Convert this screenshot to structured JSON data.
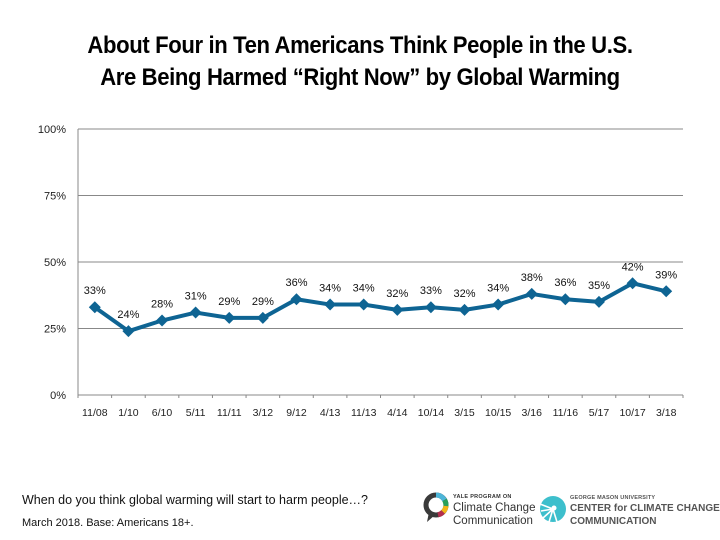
{
  "chart_data": {
    "type": "line",
    "title": "About Four in Ten Americans Think People in the U.S. Are Being Harmed “Right Now” by Global Warming",
    "title_lines": [
      "About Four in Ten Americans Think People in the U.S.",
      "Are Being Harmed “Right Now” by Global Warming"
    ],
    "xlabel": "",
    "ylabel": "",
    "categories": [
      "11/08",
      "1/10",
      "6/10",
      "5/11",
      "11/11",
      "3/12",
      "9/12",
      "4/13",
      "11/13",
      "4/14",
      "10/14",
      "3/15",
      "10/15",
      "3/16",
      "11/16",
      "5/17",
      "10/17",
      "3/18"
    ],
    "series": [
      {
        "name": "Right now",
        "values": [
          33,
          24,
          28,
          31,
          29,
          29,
          36,
          34,
          34,
          32,
          33,
          32,
          34,
          38,
          36,
          35,
          42,
          39
        ],
        "data_labels": [
          "33%",
          "24%",
          "28%",
          "31%",
          "29%",
          "29%",
          "36%",
          "34%",
          "34%",
          "32%",
          "33%",
          "32%",
          "34%",
          "38%",
          "36%",
          "35%",
          "42%",
          "39%"
        ],
        "color": "#0e6493",
        "marker": "diamond"
      }
    ],
    "ylim": [
      0,
      100
    ],
    "yticks": [
      0,
      25,
      50,
      75,
      100
    ],
    "ytick_labels": [
      "0%",
      "25%",
      "50%",
      "75%",
      "100%"
    ],
    "grid": true,
    "legend": "none"
  },
  "footer": {
    "question": "When do you think global warming will start to harm people…?",
    "base": "March 2018. Base: Americans 18+."
  },
  "logos": {
    "yale": {
      "small": "YALE PROGRAM ON",
      "line1": "Climate Change",
      "line2": "Communication"
    },
    "gmu": {
      "small": "GEORGE MASON UNIVERSITY",
      "line1": "CENTER for CLIMATE CHANGE",
      "line2": "COMMUNICATION"
    }
  },
  "colors": {
    "line": "#0e6493",
    "grid": "#888888",
    "gmu_teal": "#3dbfcc"
  }
}
